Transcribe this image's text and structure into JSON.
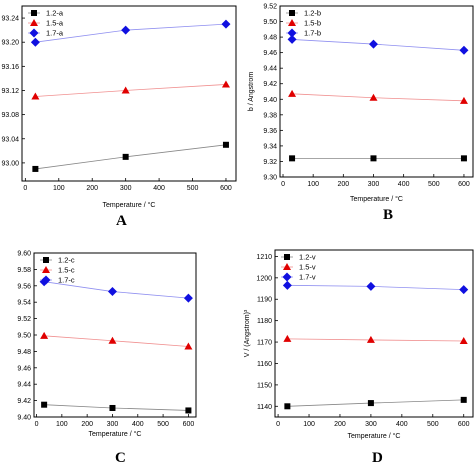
{
  "chart_data": [
    {
      "panel_letter": "A",
      "type": "scatter",
      "xlabel": "Temperature / °C",
      "ylabel": "",
      "xlim": [
        -10,
        630
      ],
      "ylim": [
        92.97,
        93.26
      ],
      "xticks": [
        0,
        100,
        200,
        300,
        400,
        500,
        600
      ],
      "yticks": [
        93.0,
        93.04,
        93.08,
        93.12,
        93.16,
        93.2,
        93.24
      ],
      "ytick_labels": [
        "93.00",
        "93.04",
        "93.08",
        "93.12",
        "93.16",
        "93.20",
        "93.24"
      ],
      "legend_position": "top-left",
      "series": [
        {
          "name": "1.2-a",
          "marker": "square",
          "color": "#000000",
          "line_color": "#888888",
          "x": [
            30,
            300,
            600
          ],
          "y": [
            92.99,
            93.01,
            93.03
          ]
        },
        {
          "name": "1.5-a",
          "marker": "triangle",
          "color": "#e00000",
          "line_color": "#f09090",
          "x": [
            30,
            300,
            600
          ],
          "y": [
            93.11,
            93.12,
            93.13
          ]
        },
        {
          "name": "1.7-a",
          "marker": "diamond",
          "color": "#1010e0",
          "line_color": "#9090f0",
          "x": [
            30,
            300,
            600
          ],
          "y": [
            93.2,
            93.22,
            93.23
          ]
        }
      ]
    },
    {
      "panel_letter": "B",
      "type": "scatter",
      "xlabel": "Temperature / °C",
      "ylabel": "b / Angstrom",
      "xlim": [
        -10,
        630
      ],
      "ylim": [
        9.3,
        9.52
      ],
      "xticks": [
        0,
        100,
        200,
        300,
        400,
        500,
        600
      ],
      "yticks": [
        9.3,
        9.32,
        9.34,
        9.36,
        9.38,
        9.4,
        9.42,
        9.44,
        9.46,
        9.48,
        9.5,
        9.52
      ],
      "ytick_labels": [
        "9.30",
        "9.32",
        "9.34",
        "9.36",
        "9.38",
        "9.40",
        "9.42",
        "9.44",
        "9.46",
        "9.48",
        "9.50",
        "9.52"
      ],
      "legend_position": "top-left",
      "series": [
        {
          "name": "1.2-b",
          "marker": "square",
          "color": "#000000",
          "line_color": "#888888",
          "x": [
            30,
            300,
            600
          ],
          "y": [
            9.324,
            9.324,
            9.324
          ]
        },
        {
          "name": "1.5-b",
          "marker": "triangle",
          "color": "#e00000",
          "line_color": "#f09090",
          "x": [
            30,
            300,
            600
          ],
          "y": [
            9.407,
            9.402,
            9.398
          ]
        },
        {
          "name": "1.7-b",
          "marker": "diamond",
          "color": "#1010e0",
          "line_color": "#9090f0",
          "x": [
            30,
            300,
            600
          ],
          "y": [
            9.477,
            9.471,
            9.463
          ]
        }
      ]
    },
    {
      "panel_letter": "C",
      "type": "scatter",
      "xlabel": "Temperature / °C",
      "ylabel": "",
      "xlim": [
        -10,
        630
      ],
      "ylim": [
        9.4,
        9.6
      ],
      "xticks": [
        0,
        100,
        200,
        300,
        400,
        500,
        600
      ],
      "yticks": [
        9.4,
        9.42,
        9.44,
        9.46,
        9.48,
        9.5,
        9.52,
        9.54,
        9.56,
        9.58,
        9.6
      ],
      "ytick_labels": [
        "9.40",
        "9.42",
        "9.44",
        "9.46",
        "9.48",
        "9.50",
        "9.52",
        "9.54",
        "9.56",
        "9.58",
        "9.60"
      ],
      "legend_position": "top-left",
      "series": [
        {
          "name": "1.2-c",
          "marker": "square",
          "color": "#000000",
          "line_color": "#888888",
          "x": [
            30,
            300,
            600
          ],
          "y": [
            9.415,
            9.411,
            9.408
          ]
        },
        {
          "name": "1.5-c",
          "marker": "triangle",
          "color": "#e00000",
          "line_color": "#f09090",
          "x": [
            30,
            300,
            600
          ],
          "y": [
            9.499,
            9.493,
            9.486
          ]
        },
        {
          "name": "1.7-c",
          "marker": "diamond",
          "color": "#1010e0",
          "line_color": "#9090f0",
          "x": [
            30,
            300,
            600
          ],
          "y": [
            9.565,
            9.553,
            9.545
          ]
        }
      ]
    },
    {
      "panel_letter": "D",
      "type": "scatter",
      "xlabel": "Temperature / °C",
      "ylabel": "V / (Angstrom)³",
      "xlim": [
        -10,
        630
      ],
      "ylim": [
        1135,
        1213
      ],
      "xticks": [
        0,
        100,
        200,
        300,
        400,
        500,
        600
      ],
      "yticks": [
        1140,
        1150,
        1160,
        1170,
        1180,
        1190,
        1200,
        1210
      ],
      "ytick_labels": [
        "1140",
        "1150",
        "1160",
        "1170",
        "1180",
        "1190",
        "1200",
        "1210"
      ],
      "legend_position": "top-left",
      "series": [
        {
          "name": "1.2-v",
          "marker": "square",
          "color": "#000000",
          "line_color": "#888888",
          "x": [
            30,
            300,
            600
          ],
          "y": [
            1140,
            1141.5,
            1143
          ]
        },
        {
          "name": "1.5-v",
          "marker": "triangle",
          "color": "#e00000",
          "line_color": "#f09090",
          "x": [
            30,
            300,
            600
          ],
          "y": [
            1171.5,
            1171,
            1170.5
          ]
        },
        {
          "name": "1.7-v",
          "marker": "diamond",
          "color": "#1010e0",
          "line_color": "#9090f0",
          "x": [
            30,
            300,
            600
          ],
          "y": [
            1196.5,
            1196,
            1194.5
          ]
        }
      ]
    }
  ]
}
